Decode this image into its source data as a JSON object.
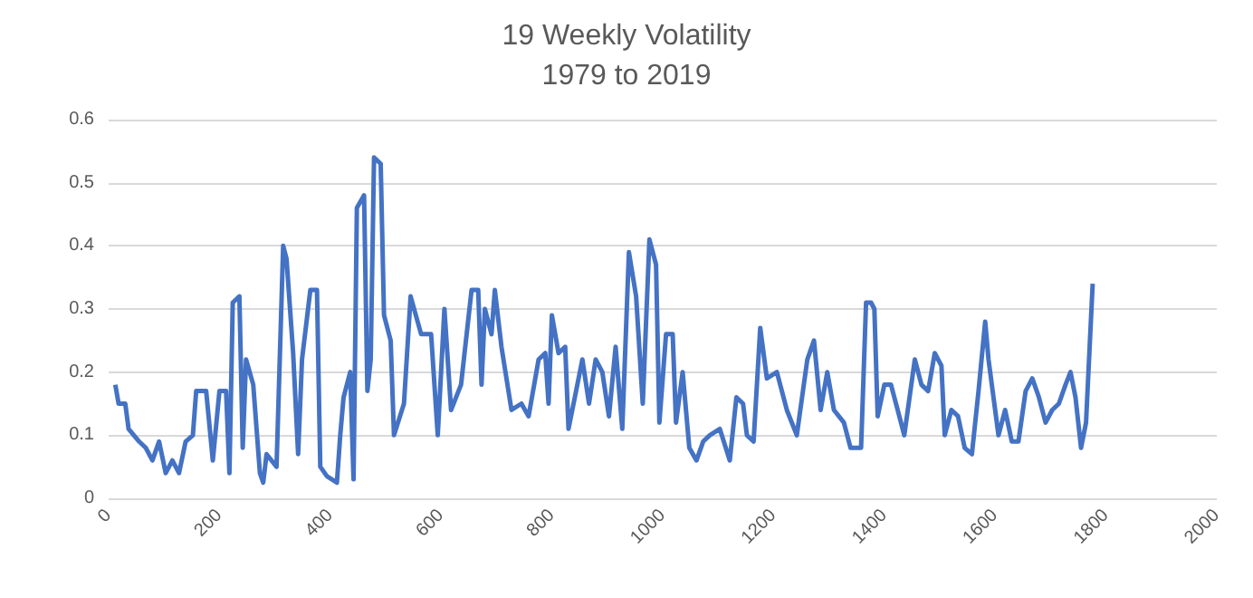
{
  "chart_data": {
    "type": "line",
    "title": "19 Weekly Volatility\n1979 to 2019",
    "xlim": [
      0,
      2000
    ],
    "xticks": [
      0,
      200,
      400,
      600,
      800,
      1000,
      1200,
      1400,
      1600,
      1800,
      2000
    ],
    "ylim": [
      0,
      0.6
    ],
    "yticks": [
      0,
      0.1,
      0.2,
      0.3,
      0.4,
      0.5,
      0.6
    ],
    "grid": "y",
    "marker": "none",
    "line_style": "solid",
    "series": [
      {
        "color": "#4472c4",
        "x": [
          12,
          18,
          30,
          36,
          55,
          67,
          79,
          91,
          103,
          115,
          127,
          139,
          152,
          158,
          176,
          188,
          200,
          212,
          218,
          224,
          236,
          242,
          248,
          261,
          273,
          279,
          285,
          303,
          315,
          321,
          333,
          342,
          349,
          364,
          376,
          382,
          394,
          412,
          418,
          424,
          436,
          442,
          448,
          461,
          467,
          473,
          479,
          491,
          497,
          509,
          515,
          533,
          545,
          564,
          582,
          594,
          606,
          618,
          636,
          655,
          667,
          673,
          679,
          691,
          697,
          709,
          727,
          745,
          758,
          776,
          788,
          794,
          800,
          812,
          824,
          830,
          855,
          867,
          879,
          891,
          903,
          915,
          927,
          939,
          952,
          964,
          976,
          988,
          994,
          1006,
          1018,
          1024,
          1036,
          1048,
          1061,
          1073,
          1085,
          1103,
          1121,
          1133,
          1145,
          1152,
          1164,
          1176,
          1188,
          1206,
          1224,
          1242,
          1261,
          1273,
          1285,
          1297,
          1309,
          1327,
          1339,
          1358,
          1367,
          1376,
          1382,
          1388,
          1400,
          1412,
          1424,
          1436,
          1455,
          1467,
          1479,
          1491,
          1503,
          1509,
          1521,
          1533,
          1545,
          1558,
          1570,
          1582,
          1588,
          1606,
          1618,
          1630,
          1642,
          1655,
          1667,
          1679,
          1691,
          1703,
          1715,
          1727,
          1736,
          1745,
          1755,
          1764,
          1776
        ],
        "values": [
          0.18,
          0.15,
          0.15,
          0.11,
          0.09,
          0.08,
          0.06,
          0.09,
          0.04,
          0.06,
          0.04,
          0.09,
          0.1,
          0.17,
          0.17,
          0.06,
          0.17,
          0.17,
          0.04,
          0.31,
          0.32,
          0.08,
          0.22,
          0.18,
          0.04,
          0.025,
          0.07,
          0.05,
          0.4,
          0.38,
          0.23,
          0.07,
          0.22,
          0.33,
          0.33,
          0.05,
          0.035,
          0.025,
          0.1,
          0.16,
          0.2,
          0.03,
          0.46,
          0.48,
          0.17,
          0.22,
          0.54,
          0.53,
          0.29,
          0.25,
          0.1,
          0.15,
          0.32,
          0.26,
          0.26,
          0.1,
          0.3,
          0.14,
          0.18,
          0.33,
          0.33,
          0.18,
          0.3,
          0.26,
          0.33,
          0.24,
          0.14,
          0.15,
          0.13,
          0.22,
          0.23,
          0.15,
          0.29,
          0.23,
          0.24,
          0.11,
          0.22,
          0.15,
          0.22,
          0.2,
          0.13,
          0.24,
          0.11,
          0.39,
          0.32,
          0.15,
          0.41,
          0.37,
          0.12,
          0.26,
          0.26,
          0.12,
          0.2,
          0.08,
          0.06,
          0.09,
          0.1,
          0.11,
          0.06,
          0.16,
          0.15,
          0.1,
          0.09,
          0.27,
          0.19,
          0.2,
          0.14,
          0.1,
          0.22,
          0.25,
          0.14,
          0.2,
          0.14,
          0.12,
          0.08,
          0.08,
          0.31,
          0.31,
          0.3,
          0.13,
          0.18,
          0.18,
          0.14,
          0.1,
          0.22,
          0.18,
          0.17,
          0.23,
          0.21,
          0.1,
          0.14,
          0.13,
          0.08,
          0.07,
          0.17,
          0.28,
          0.22,
          0.1,
          0.14,
          0.09,
          0.09,
          0.17,
          0.19,
          0.16,
          0.12,
          0.14,
          0.15,
          0.18,
          0.2,
          0.16,
          0.08,
          0.12,
          0.34
        ]
      }
    ]
  }
}
